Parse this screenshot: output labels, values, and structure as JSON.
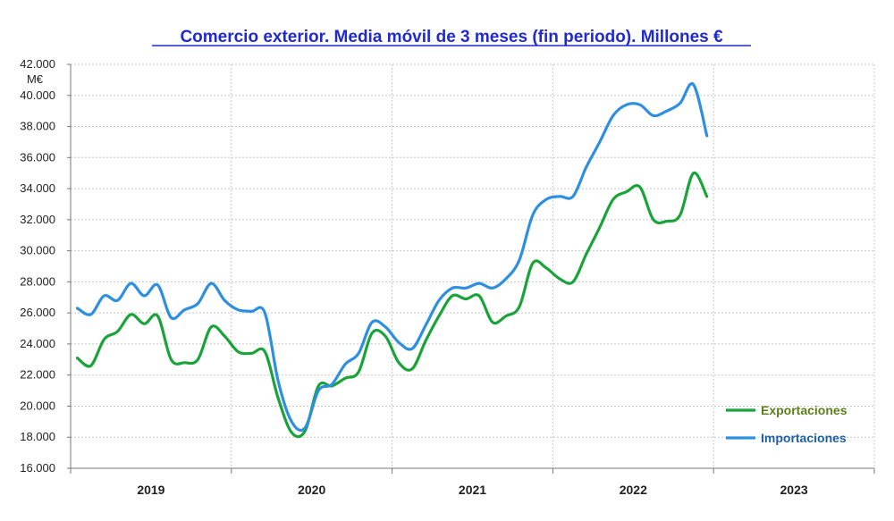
{
  "chart_data": {
    "type": "line",
    "title": "Comercio exterior. Media móvil de 3 meses (fin periodo). Millones €",
    "ylabel": "M€",
    "xlabel": "",
    "ylim": [
      16000,
      42000
    ],
    "yticks": [
      16000,
      18000,
      20000,
      22000,
      24000,
      26000,
      28000,
      30000,
      32000,
      34000,
      36000,
      38000,
      40000,
      42000
    ],
    "ytick_labels": [
      "16.000",
      "18.000",
      "20.000",
      "22.000",
      "24.000",
      "26.000",
      "28.000",
      "30.000",
      "32.000",
      "34.000",
      "36.000",
      "38.000",
      "40.000",
      "42.000"
    ],
    "categories": [
      "2019",
      "2020",
      "2021",
      "2022",
      "2023"
    ],
    "x": [
      "2019-01",
      "2019-02",
      "2019-03",
      "2019-04",
      "2019-05",
      "2019-06",
      "2019-07",
      "2019-08",
      "2019-09",
      "2019-10",
      "2019-11",
      "2019-12",
      "2020-01",
      "2020-02",
      "2020-03",
      "2020-04",
      "2020-05",
      "2020-06",
      "2020-07",
      "2020-08",
      "2020-09",
      "2020-10",
      "2020-11",
      "2020-12",
      "2021-01",
      "2021-02",
      "2021-03",
      "2021-04",
      "2021-05",
      "2021-06",
      "2021-07",
      "2021-08",
      "2021-09",
      "2021-10",
      "2021-11",
      "2021-12",
      "2022-01",
      "2022-02",
      "2022-03",
      "2022-04",
      "2022-05",
      "2022-06",
      "2022-07",
      "2022-08",
      "2022-09",
      "2022-10",
      "2022-11",
      "2022-12"
    ],
    "series": [
      {
        "name": "Exportaciones",
        "color": "#1aa33a",
        "values": [
          23100,
          22600,
          24300,
          24800,
          25900,
          25300,
          25800,
          23000,
          22800,
          23000,
          25100,
          24500,
          23500,
          23400,
          23500,
          20500,
          18300,
          18400,
          21300,
          21300,
          21800,
          22200,
          24700,
          24500,
          22800,
          22400,
          24200,
          25800,
          27100,
          26900,
          27100,
          25400,
          25800,
          26400,
          29200,
          28900,
          28200,
          28000,
          29800,
          31500,
          33300,
          33800,
          34100,
          32000,
          31900,
          32300,
          35000,
          33500
        ]
      },
      {
        "name": "Importaciones",
        "color": "#2e8fe0",
        "values": [
          26300,
          25900,
          27100,
          26800,
          27900,
          27100,
          27800,
          25700,
          26200,
          26600,
          27900,
          26800,
          26200,
          26100,
          26000,
          21600,
          19000,
          18600,
          21000,
          21400,
          22700,
          23400,
          25400,
          25100,
          24100,
          23700,
          25200,
          26800,
          27600,
          27600,
          27900,
          27600,
          28200,
          29400,
          32300,
          33300,
          33500,
          33500,
          35400,
          37000,
          38700,
          39400,
          39400,
          38700,
          39000,
          39500,
          40700,
          37400
        ]
      }
    ],
    "grid": true,
    "legend_position": "bottom-right"
  }
}
